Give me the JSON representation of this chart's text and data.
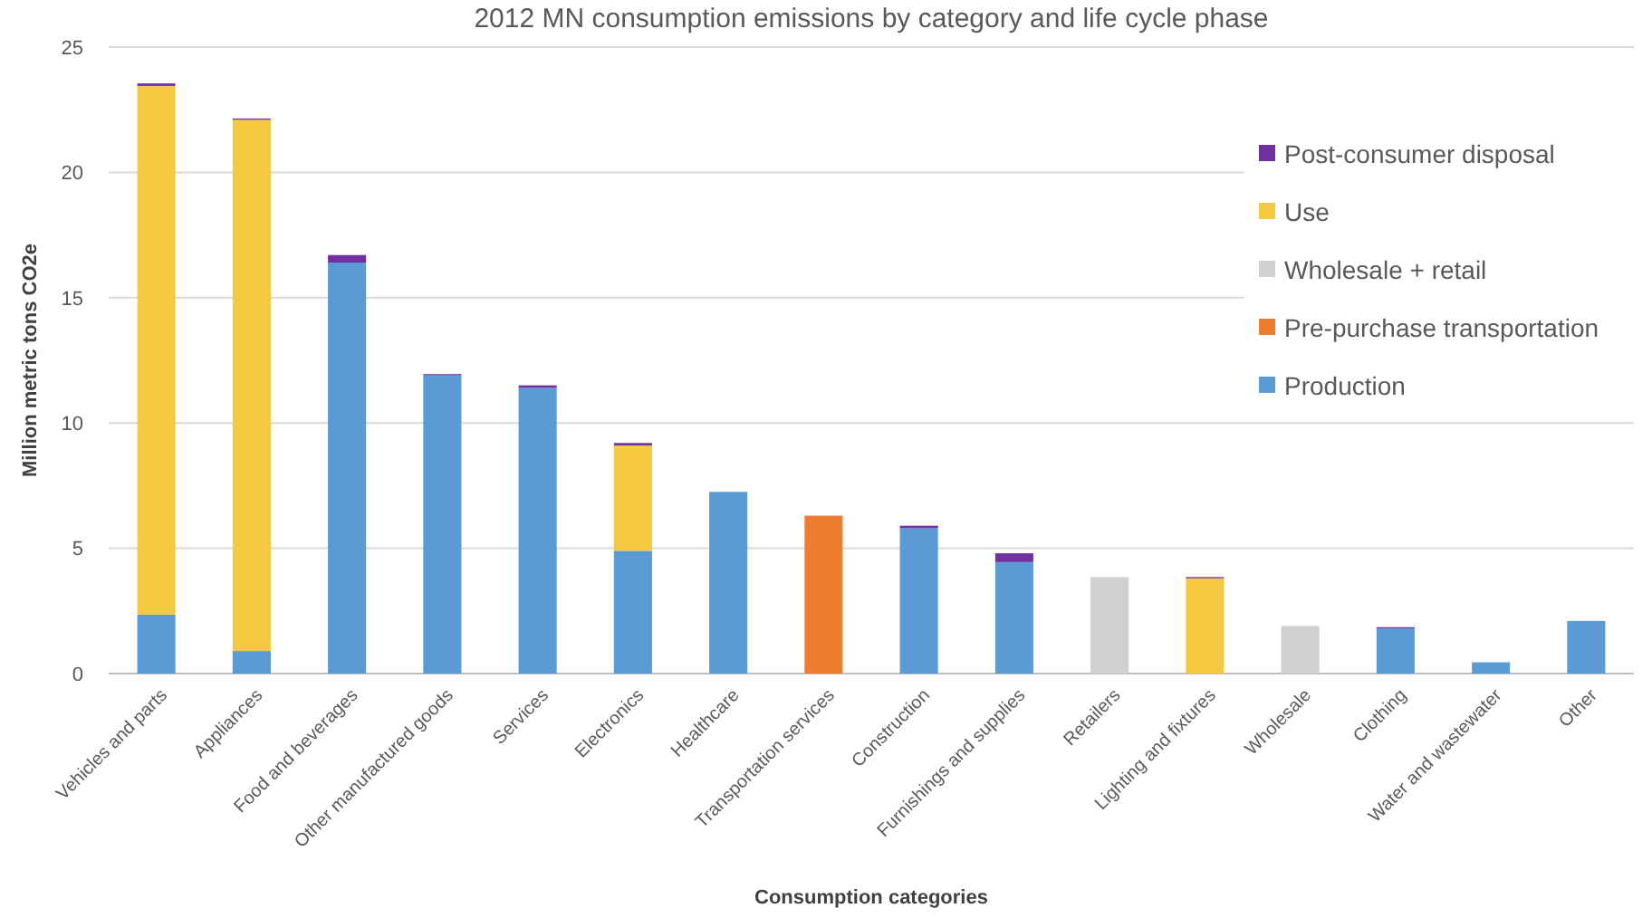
{
  "chart_data": {
    "type": "bar",
    "stacked": true,
    "title": "2012 MN consumption emissions by category and life cycle phase",
    "xlabel": "Consumption categories",
    "ylabel": "Million metric tons CO2e",
    "categories": [
      "Vehicles and parts",
      "Appliances",
      "Food and beverages",
      "Other manufactured goods",
      "Services",
      "Electronics",
      "Healthcare",
      "Transportation services",
      "Construction",
      "Furnishings and supplies",
      "Retailers",
      "Lighting and fixtures",
      "Wholesale",
      "Clothing",
      "Water and wastewater",
      "Other"
    ],
    "series": [
      {
        "name": "Production",
        "color": "#5b9bd5",
        "values": [
          2.35,
          0.9,
          16.4,
          11.9,
          11.4,
          4.9,
          7.25,
          null,
          5.8,
          4.45,
          null,
          null,
          null,
          1.8,
          0.45,
          2.1
        ]
      },
      {
        "name": "Pre-purchase transportation",
        "color": "#ed7d31",
        "values": [
          null,
          null,
          null,
          null,
          null,
          null,
          null,
          6.3,
          null,
          null,
          null,
          null,
          null,
          null,
          null,
          null
        ]
      },
      {
        "name": "Wholesale + retail",
        "color": "#d0d0d0",
        "values": [
          null,
          null,
          null,
          null,
          null,
          null,
          null,
          null,
          null,
          null,
          3.85,
          null,
          1.9,
          null,
          null,
          null
        ]
      },
      {
        "name": "Use",
        "color": "#f5c842",
        "values": [
          21.1,
          21.2,
          null,
          null,
          null,
          4.2,
          null,
          null,
          null,
          null,
          null,
          3.8,
          null,
          null,
          null,
          null
        ]
      },
      {
        "name": "Post-consumer disposal",
        "color": "#7030a0",
        "values": [
          0.1,
          0.05,
          0.3,
          0.05,
          0.1,
          0.1,
          null,
          null,
          0.1,
          0.35,
          null,
          0.05,
          null,
          0.05,
          null,
          null
        ]
      }
    ],
    "ylim": [
      0,
      25
    ],
    "yticks": [
      0,
      5,
      10,
      15,
      20,
      25
    ],
    "grid": "y",
    "legend": "top right"
  }
}
